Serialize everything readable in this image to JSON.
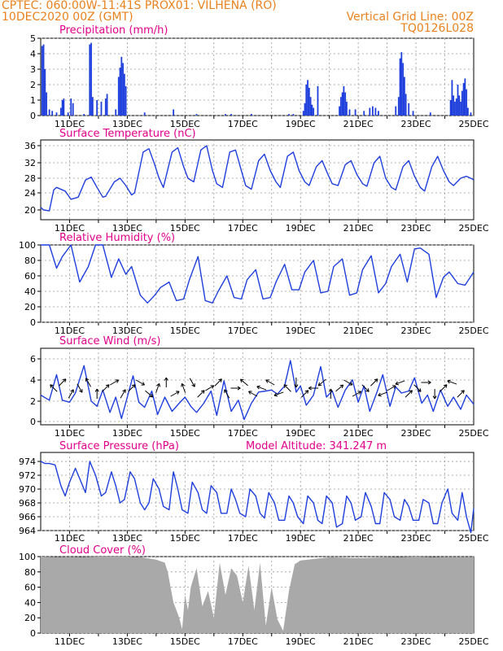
{
  "header": {
    "line1_left": "CPTEC:   060:00W-11:41S   PROX01: VILHENA (RO)",
    "line2_left": "10DEC2020 00Z (GMT)",
    "line2_right": "Vertical Grid Line: 00Z",
    "line3_right": "TQ0126L028"
  },
  "colors": {
    "series": "#1f3fdc",
    "title": "#e0008a",
    "header": "#e8821e",
    "cloud": "#a9a9a9",
    "grid": "#9a9a9a"
  },
  "x_dates": [
    "11DEC",
    "13DEC",
    "15DEC",
    "17DEC",
    "19DEC",
    "21DEC",
    "23DEC",
    "25DEC"
  ],
  "chart_data": [
    {
      "type": "bar",
      "title": "Precipitation (mm/h)",
      "ylim": [
        0,
        5
      ],
      "yticks": [
        "0",
        "1",
        "2",
        "3",
        "4",
        "5"
      ],
      "x_range": [
        10.0,
        25.0
      ],
      "events": [
        [
          10.05,
          4.5
        ],
        [
          10.1,
          4.6
        ],
        [
          10.15,
          3.0
        ],
        [
          10.2,
          1.5
        ],
        [
          10.3,
          0.4
        ],
        [
          10.4,
          0.3
        ],
        [
          10.55,
          0.2
        ],
        [
          10.7,
          0.5
        ],
        [
          10.75,
          1.0
        ],
        [
          10.8,
          1.1
        ],
        [
          10.95,
          0.2
        ],
        [
          11.05,
          1.1
        ],
        [
          11.12,
          0.8
        ],
        [
          11.5,
          0.1
        ],
        [
          11.7,
          4.6
        ],
        [
          11.75,
          4.7
        ],
        [
          11.8,
          1.2
        ],
        [
          11.95,
          1.0
        ],
        [
          12.1,
          0.9
        ],
        [
          12.25,
          1.1
        ],
        [
          12.3,
          1.4
        ],
        [
          12.6,
          0.4
        ],
        [
          12.7,
          2.5
        ],
        [
          12.75,
          3.1
        ],
        [
          12.8,
          3.8
        ],
        [
          12.85,
          3.4
        ],
        [
          12.9,
          2.7
        ],
        [
          12.95,
          1.9
        ],
        [
          13.6,
          0.2
        ],
        [
          14.6,
          0.4
        ],
        [
          15.4,
          0.1
        ],
        [
          16.4,
          0.1
        ],
        [
          16.6,
          0.1
        ],
        [
          17.3,
          0.1
        ],
        [
          18.6,
          0.1
        ],
        [
          18.75,
          0.1
        ],
        [
          19.1,
          0.3
        ],
        [
          19.15,
          0.8
        ],
        [
          19.2,
          2.0
        ],
        [
          19.25,
          2.3
        ],
        [
          19.3,
          1.8
        ],
        [
          19.35,
          1.2
        ],
        [
          19.4,
          0.7
        ],
        [
          19.45,
          0.5
        ],
        [
          19.6,
          1.9
        ],
        [
          20.35,
          0.6
        ],
        [
          20.4,
          1.2
        ],
        [
          20.45,
          1.5
        ],
        [
          20.5,
          1.9
        ],
        [
          20.55,
          1.5
        ],
        [
          20.6,
          0.9
        ],
        [
          20.7,
          0.4
        ],
        [
          20.9,
          0.4
        ],
        [
          21.2,
          0.3
        ],
        [
          21.4,
          0.5
        ],
        [
          21.5,
          0.6
        ],
        [
          21.6,
          0.5
        ],
        [
          21.7,
          0.3
        ],
        [
          22.3,
          0.6
        ],
        [
          22.4,
          1.2
        ],
        [
          22.45,
          3.7
        ],
        [
          22.5,
          4.1
        ],
        [
          22.55,
          3.4
        ],
        [
          22.6,
          2.5
        ],
        [
          22.65,
          1.4
        ],
        [
          22.75,
          0.8
        ],
        [
          22.9,
          0.3
        ],
        [
          23.5,
          0.2
        ],
        [
          24.2,
          1.0
        ],
        [
          24.25,
          2.3
        ],
        [
          24.3,
          1.3
        ],
        [
          24.35,
          0.9
        ],
        [
          24.4,
          1.1
        ],
        [
          24.45,
          2.0
        ],
        [
          24.5,
          1.3
        ],
        [
          24.55,
          0.9
        ],
        [
          24.6,
          1.6
        ],
        [
          24.65,
          2.1
        ],
        [
          24.7,
          2.4
        ],
        [
          24.75,
          1.7
        ],
        [
          24.8,
          0.5
        ],
        [
          24.9,
          0.2
        ]
      ]
    },
    {
      "type": "line",
      "title": "Surface Temperature (nC)",
      "ylim": [
        19,
        37
      ],
      "yticks": [
        "20",
        "24",
        "28",
        "32",
        "36"
      ],
      "x": [
        10.0,
        10.1,
        10.3,
        10.45,
        10.55,
        10.85,
        11.05,
        11.3,
        11.55,
        11.75,
        11.95,
        12.15,
        12.25,
        12.55,
        12.75,
        12.95,
        13.15,
        13.25,
        13.55,
        13.75,
        13.95,
        14.1,
        14.25,
        14.55,
        14.75,
        14.95,
        15.1,
        15.3,
        15.55,
        15.75,
        15.95,
        16.1,
        16.3,
        16.55,
        16.75,
        16.95,
        17.1,
        17.3,
        17.55,
        17.75,
        17.95,
        18.15,
        18.3,
        18.55,
        18.75,
        18.95,
        19.15,
        19.3,
        19.55,
        19.75,
        19.95,
        20.1,
        20.3,
        20.55,
        20.75,
        20.95,
        21.15,
        21.3,
        21.55,
        21.75,
        21.95,
        22.15,
        22.3,
        22.55,
        22.75,
        22.95,
        23.15,
        23.3,
        23.55,
        23.75,
        23.95,
        24.15,
        24.3,
        24.55,
        24.75,
        24.95,
        25.0
      ],
      "values": [
        20.6,
        20.0,
        19.8,
        24.8,
        25.5,
        24.5,
        22.5,
        23.0,
        27.5,
        28.3,
        25.5,
        23.0,
        23.2,
        27.0,
        28.0,
        26.0,
        23.5,
        24.0,
        34.5,
        35.3,
        31.5,
        28.0,
        25.5,
        34.5,
        35.5,
        31.0,
        28.0,
        27.0,
        35.0,
        36.0,
        30.0,
        26.5,
        25.5,
        34.5,
        35.0,
        30.0,
        26.0,
        25.0,
        32.5,
        34.0,
        30.0,
        27.0,
        25.5,
        33.5,
        34.5,
        30.0,
        27.0,
        26.0,
        31.0,
        32.5,
        29.0,
        26.5,
        26.0,
        31.5,
        32.5,
        29.0,
        26.5,
        25.8,
        32.0,
        33.5,
        28.0,
        25.5,
        24.8,
        31.0,
        32.5,
        28.5,
        25.5,
        24.5,
        31.0,
        33.5,
        30.0,
        27.0,
        26.0,
        28.0,
        28.5,
        27.8,
        27.5
      ]
    },
    {
      "type": "line",
      "title": "Relative Humidity (%)",
      "ylim": [
        0,
        100
      ],
      "yticks": [
        "0",
        "20",
        "40",
        "60",
        "80",
        "100"
      ],
      "x": [
        10.0,
        10.3,
        10.55,
        10.75,
        11.05,
        11.35,
        11.65,
        11.9,
        12.15,
        12.45,
        12.7,
        12.95,
        13.15,
        13.45,
        13.7,
        13.95,
        14.15,
        14.45,
        14.7,
        14.95,
        15.15,
        15.45,
        15.7,
        15.95,
        16.15,
        16.45,
        16.7,
        16.95,
        17.15,
        17.45,
        17.7,
        17.95,
        18.15,
        18.45,
        18.7,
        18.95,
        19.15,
        19.45,
        19.7,
        19.95,
        20.15,
        20.45,
        20.7,
        20.95,
        21.15,
        21.45,
        21.7,
        21.95,
        22.15,
        22.45,
        22.7,
        22.95,
        23.15,
        23.45,
        23.7,
        23.95,
        24.15,
        24.45,
        24.7,
        25.0
      ],
      "values": [
        100,
        100,
        70,
        85,
        100,
        52,
        72,
        100,
        100,
        58,
        82,
        62,
        72,
        35,
        25,
        35,
        45,
        52,
        28,
        30,
        55,
        85,
        28,
        25,
        40,
        60,
        32,
        30,
        55,
        68,
        30,
        32,
        52,
        75,
        42,
        42,
        65,
        80,
        38,
        40,
        72,
        82,
        35,
        38,
        68,
        86,
        38,
        50,
        72,
        88,
        52,
        95,
        96,
        88,
        32,
        58,
        65,
        50,
        48,
        65
      ]
    },
    {
      "type": "line",
      "title": "Surface Wind (m/s)",
      "ylim": [
        -0.5,
        7
      ],
      "yticks": [
        "0",
        "2",
        "4",
        "6"
      ],
      "x": [
        10.0,
        10.3,
        10.55,
        10.75,
        11.0,
        11.2,
        11.5,
        11.75,
        11.95,
        12.15,
        12.4,
        12.6,
        12.8,
        13.0,
        13.2,
        13.4,
        13.6,
        13.85,
        14.05,
        14.3,
        14.55,
        14.8,
        15.0,
        15.2,
        15.4,
        15.65,
        15.9,
        16.1,
        16.35,
        16.6,
        16.85,
        17.05,
        17.3,
        17.55,
        17.8,
        18.0,
        18.2,
        18.45,
        18.65,
        18.85,
        19.0,
        19.2,
        19.45,
        19.7,
        19.9,
        20.1,
        20.3,
        20.55,
        20.8,
        21.0,
        21.2,
        21.4,
        21.65,
        21.85,
        22.1,
        22.3,
        22.5,
        22.75,
        22.95,
        23.2,
        23.4,
        23.6,
        23.85,
        24.1,
        24.3,
        24.55,
        24.75,
        25.0
      ],
      "values": [
        2.6,
        2.1,
        4.6,
        2.1,
        1.9,
        2.8,
        5.5,
        2.0,
        1.5,
        3.1,
        0.9,
        2.4,
        0.3,
        2.4,
        4.5,
        1.9,
        1.4,
        3.0,
        0.7,
        2.4,
        1.0,
        1.8,
        2.4,
        1.5,
        0.9,
        1.8,
        3.0,
        0.6,
        4.0,
        1.0,
        2.1,
        0.2,
        1.8,
        2.9,
        3.0,
        3.1,
        2.7,
        3.5,
        6.0,
        2.9,
        3.5,
        1.6,
        2.6,
        5.4,
        2.4,
        3.0,
        1.4,
        3.1,
        4.1,
        1.9,
        3.5,
        1.0,
        2.9,
        4.6,
        1.5,
        3.4,
        2.8,
        3.0,
        4.3,
        1.8,
        2.6,
        1.0,
        3.1,
        1.5,
        2.4,
        1.2,
        2.6,
        1.7
      ],
      "arrows_angle_deg": [
        135,
        45,
        60,
        300,
        120,
        90,
        45,
        30,
        60,
        45,
        330,
        320,
        70,
        90,
        30,
        110,
        300,
        45,
        30,
        45,
        120,
        0,
        140,
        150,
        160,
        150,
        200,
        135,
        270,
        45,
        180,
        220,
        90,
        40,
        330,
        30,
        315,
        45,
        200,
        30,
        200,
        45,
        315,
        0,
        270,
        45,
        160,
        45
      ]
    },
    {
      "type": "line",
      "title": "Surface Pressure (hPa)",
      "annotation": "Model Altitude: 341.247 m",
      "ylim": [
        964,
        975.3
      ],
      "yticks": [
        "964",
        "966",
        "968",
        "970",
        "972",
        "974"
      ],
      "x": [
        10.0,
        10.15,
        10.3,
        10.5,
        10.7,
        10.85,
        11.0,
        11.2,
        11.4,
        11.55,
        11.7,
        11.9,
        12.1,
        12.25,
        12.45,
        12.6,
        12.75,
        12.9,
        13.1,
        13.25,
        13.45,
        13.6,
        13.75,
        13.9,
        14.1,
        14.25,
        14.45,
        14.6,
        14.75,
        14.9,
        15.1,
        15.25,
        15.45,
        15.6,
        15.75,
        15.9,
        16.1,
        16.25,
        16.45,
        16.6,
        16.75,
        16.9,
        17.1,
        17.25,
        17.45,
        17.6,
        17.75,
        17.9,
        18.1,
        18.25,
        18.45,
        18.6,
        18.75,
        18.9,
        19.1,
        19.25,
        19.45,
        19.6,
        19.75,
        19.9,
        20.1,
        20.25,
        20.45,
        20.6,
        20.75,
        20.9,
        21.1,
        21.25,
        21.45,
        21.6,
        21.75,
        21.9,
        22.1,
        22.25,
        22.45,
        22.6,
        22.75,
        22.9,
        23.1,
        23.25,
        23.45,
        23.6,
        23.75,
        23.9,
        24.1,
        24.25,
        24.45,
        24.6,
        24.75,
        24.9,
        25.0
      ],
      "values": [
        974.0,
        973.7,
        973.7,
        973.5,
        970.5,
        969.0,
        971.0,
        973.0,
        971.0,
        969.5,
        974.0,
        972.0,
        969.0,
        969.5,
        972.5,
        970.5,
        968.0,
        968.5,
        972.5,
        971.5,
        968.0,
        967.0,
        968.0,
        971.5,
        970.0,
        967.5,
        967.0,
        972.5,
        970.0,
        967.0,
        966.5,
        971.0,
        969.5,
        967.0,
        966.5,
        970.5,
        969.5,
        966.5,
        966.5,
        970.0,
        968.5,
        966.5,
        966.0,
        970.0,
        969.0,
        966.5,
        965.8,
        969.5,
        968.0,
        965.5,
        965.5,
        969.0,
        968.0,
        966.0,
        965.0,
        969.0,
        968.0,
        965.5,
        965.0,
        969.0,
        968.0,
        964.5,
        965.0,
        969.0,
        968.0,
        965.5,
        966.0,
        969.5,
        967.5,
        965.0,
        965.0,
        969.5,
        968.5,
        966.0,
        965.5,
        968.5,
        967.5,
        965.5,
        965.5,
        968.5,
        968.0,
        965.0,
        965.0,
        968.0,
        970.0,
        966.5,
        965.5,
        969.5,
        966.0,
        963.7,
        967.2
      ]
    },
    {
      "type": "bar",
      "title": "Cloud Cover (%)",
      "ylim": [
        0,
        100
      ],
      "yticks": [
        "0",
        "20",
        "40",
        "60",
        "80",
        "100"
      ],
      "x": [
        10.0,
        11.0,
        12.0,
        13.0,
        13.5,
        14.0,
        14.3,
        14.4,
        14.5,
        14.6,
        14.7,
        14.8,
        14.9,
        15.0,
        15.1,
        15.2,
        15.4,
        15.6,
        15.8,
        16.0,
        16.2,
        16.4,
        16.6,
        16.8,
        17.0,
        17.2,
        17.4,
        17.6,
        17.8,
        18.0,
        18.2,
        18.4,
        18.6,
        18.8,
        19.0,
        19.5,
        20.0,
        21.0,
        22.0,
        23.0,
        24.0,
        25.0
      ],
      "values": [
        100,
        99,
        100,
        100,
        99,
        96,
        92,
        80,
        60,
        40,
        30,
        20,
        5,
        50,
        30,
        60,
        85,
        35,
        55,
        20,
        92,
        50,
        85,
        75,
        40,
        88,
        30,
        92,
        10,
        60,
        18,
        3,
        55,
        90,
        95,
        97,
        99,
        98,
        99,
        100,
        99,
        99
      ]
    }
  ]
}
